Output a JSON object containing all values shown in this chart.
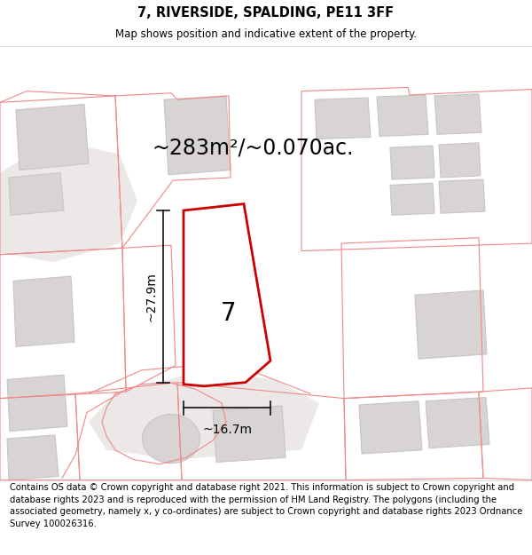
{
  "title": "7, RIVERSIDE, SPALDING, PE11 3FF",
  "subtitle": "Map shows position and indicative extent of the property.",
  "footer": "Contains OS data © Crown copyright and database right 2021. This information is subject to Crown copyright and database rights 2023 and is reproduced with the permission of HM Land Registry. The polygons (including the associated geometry, namely x, y co-ordinates) are subject to Crown copyright and database rights 2023 Ordnance Survey 100026316.",
  "area_label": "~283m²/~0.070ac.",
  "width_label": "~16.7m",
  "height_label": "~27.9m",
  "number_label": "7",
  "map_bg": "#f7f3f3",
  "building_fill": "#d8d4d4",
  "building_edge": "#c8c4c4",
  "property_color": "#cc0000",
  "property_lw": 2.0,
  "dim_color": "#111111",
  "cadastral_color": "#f08888",
  "cadastral_lw": 0.8,
  "title_fontsize": 10.5,
  "subtitle_fontsize": 8.5,
  "footer_fontsize": 7.2,
  "area_fontsize": 17,
  "number_fontsize": 20,
  "dim_fontsize": 10
}
